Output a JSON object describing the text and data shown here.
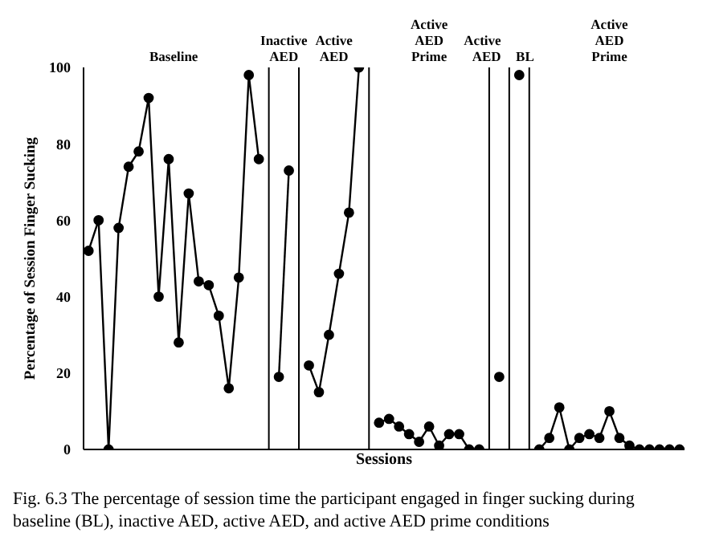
{
  "chart_data": {
    "type": "line",
    "xlabel": "Sessions",
    "ylabel": "Percentage of Session Finger Sucking",
    "categories": [
      null,
      null,
      null,
      null,
      null,
      null,
      null,
      null,
      null,
      null,
      null,
      null,
      null,
      null,
      null,
      null,
      null,
      null,
      null,
      null,
      null,
      null,
      null,
      null,
      null,
      null,
      null,
      null,
      null,
      null,
      null,
      null,
      null,
      null,
      null,
      null,
      null,
      null,
      null,
      null,
      null,
      null,
      null,
      null,
      null,
      null,
      null,
      null,
      null,
      null,
      null,
      null,
      null,
      null,
      null,
      null,
      null,
      null,
      null,
      null
    ],
    "ylim": [
      0,
      100
    ],
    "yticks": [
      0,
      20,
      40,
      60,
      80,
      100
    ],
    "grid": false,
    "marker": "circle",
    "line_style": "solid",
    "series": [
      {
        "color": "#000000",
        "values": [
          52,
          60,
          0,
          58,
          74,
          78,
          92,
          40,
          76,
          28,
          67,
          44,
          43,
          35,
          16,
          45,
          98,
          76,
          null,
          null,
          null,
          null,
          null,
          null,
          null,
          null,
          null,
          null,
          null,
          null,
          null,
          null,
          null,
          null,
          null,
          null,
          null,
          null,
          null,
          null,
          null,
          null,
          null,
          null,
          null,
          null,
          null,
          null,
          null,
          null,
          null,
          null,
          null,
          null,
          null,
          null,
          null,
          null,
          null,
          null
        ]
      },
      {
        "color": "#000000",
        "values": [
          null,
          null,
          null,
          null,
          null,
          null,
          null,
          null,
          null,
          null,
          null,
          null,
          null,
          null,
          null,
          null,
          null,
          null,
          null,
          19,
          73,
          null,
          null,
          null,
          null,
          null,
          null,
          null,
          null,
          null,
          null,
          null,
          null,
          null,
          null,
          null,
          null,
          null,
          null,
          null,
          null,
          null,
          null,
          null,
          null,
          null,
          null,
          null,
          null,
          null,
          null,
          null,
          null,
          null,
          null,
          null,
          null,
          null,
          null,
          null
        ]
      },
      {
        "color": "#000000",
        "values": [
          null,
          null,
          null,
          null,
          null,
          null,
          null,
          null,
          null,
          null,
          null,
          null,
          null,
          null,
          null,
          null,
          null,
          null,
          null,
          null,
          null,
          null,
          22,
          15,
          30,
          46,
          62,
          100,
          null,
          null,
          null,
          null,
          null,
          null,
          null,
          null,
          null,
          null,
          null,
          null,
          null,
          null,
          null,
          null,
          null,
          null,
          null,
          null,
          null,
          null,
          null,
          null,
          null,
          null,
          null,
          null,
          null,
          null,
          null,
          null
        ]
      },
      {
        "color": "#000000",
        "values": [
          null,
          null,
          null,
          null,
          null,
          null,
          null,
          null,
          null,
          null,
          null,
          null,
          null,
          null,
          null,
          null,
          null,
          null,
          null,
          null,
          null,
          null,
          null,
          null,
          null,
          null,
          null,
          null,
          null,
          7,
          8,
          6,
          4,
          2,
          6,
          1,
          4,
          4,
          0,
          0,
          null,
          null,
          null,
          null,
          null,
          null,
          null,
          null,
          null,
          null,
          null,
          null,
          null,
          null,
          null,
          null,
          null,
          null,
          null,
          null
        ]
      },
      {
        "color": "#000000",
        "values": [
          null,
          null,
          null,
          null,
          null,
          null,
          null,
          null,
          null,
          null,
          null,
          null,
          null,
          null,
          null,
          null,
          null,
          null,
          null,
          null,
          null,
          null,
          null,
          null,
          null,
          null,
          null,
          null,
          null,
          null,
          null,
          null,
          null,
          null,
          null,
          null,
          null,
          null,
          null,
          null,
          null,
          19,
          null,
          null,
          null,
          null,
          null,
          null,
          null,
          null,
          null,
          null,
          null,
          null,
          null,
          null,
          null,
          null,
          null,
          null
        ]
      },
      {
        "color": "#000000",
        "values": [
          null,
          null,
          null,
          null,
          null,
          null,
          null,
          null,
          null,
          null,
          null,
          null,
          null,
          null,
          null,
          null,
          null,
          null,
          null,
          null,
          null,
          null,
          null,
          null,
          null,
          null,
          null,
          null,
          null,
          null,
          null,
          null,
          null,
          null,
          null,
          null,
          null,
          null,
          null,
          null,
          null,
          null,
          null,
          98,
          null,
          null,
          null,
          null,
          null,
          null,
          null,
          null,
          null,
          null,
          null,
          null,
          null,
          null,
          null,
          null
        ]
      },
      {
        "color": "#000000",
        "values": [
          null,
          null,
          null,
          null,
          null,
          null,
          null,
          null,
          null,
          null,
          null,
          null,
          null,
          null,
          null,
          null,
          null,
          null,
          null,
          null,
          null,
          null,
          null,
          null,
          null,
          null,
          null,
          null,
          null,
          null,
          null,
          null,
          null,
          null,
          null,
          null,
          null,
          null,
          null,
          null,
          null,
          null,
          null,
          null,
          null,
          0,
          3,
          11,
          0,
          3,
          4,
          3,
          10,
          3,
          1,
          0,
          0,
          0,
          0,
          0
        ]
      }
    ],
    "annotations": [
      "Baseline",
      "Inactive AED",
      "Active AED",
      "Active AED Prime",
      "Active AED",
      "BL",
      "Active AED Prime",
      "Fig. 6.3 The percentage of session time the participant engaged in finger sucking during baseline (BL), inactive AED, active AED, and active AED prime conditions"
    ]
  }
}
